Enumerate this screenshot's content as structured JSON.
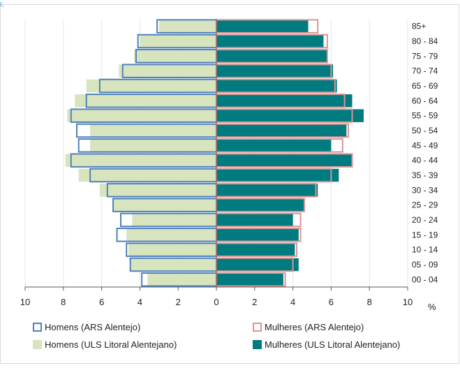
{
  "top_mark": "ι;",
  "chart_data": {
    "type": "bar",
    "orientation": "horizontal",
    "subtype": "population-pyramid",
    "categories": [
      "00 - 04",
      "05 - 09",
      "10 - 14",
      "15 - 19",
      "20 - 24",
      "25 - 29",
      "30 - 34",
      "35 - 39",
      "40 - 44",
      "45 - 49",
      "50 - 54",
      "55 - 59",
      "60 - 64",
      "65 - 69",
      "70 - 74",
      "75 - 79",
      "80 - 84",
      "85+"
    ],
    "xticks": [
      "10",
      "8",
      "6",
      "4",
      "2",
      "0",
      "2",
      "4",
      "6",
      "8",
      "10"
    ],
    "xunit": "%",
    "xlim": [
      -10,
      10
    ],
    "legend_position": "bottom",
    "series": [
      {
        "name": "Homens (ARS Alentejo)",
        "side": "left",
        "style": "outline",
        "color": "#4f81bd",
        "values": [
          3.9,
          4.5,
          4.7,
          5.2,
          5.0,
          5.4,
          5.7,
          6.6,
          7.6,
          7.2,
          7.3,
          7.6,
          6.8,
          6.1,
          4.9,
          4.2,
          4.1,
          3.1
        ]
      },
      {
        "name": "Mulheres (ARS Alentejo)",
        "side": "right",
        "style": "outline",
        "color": "#d99594",
        "values": [
          3.6,
          4.0,
          4.2,
          4.4,
          4.4,
          4.6,
          5.2,
          6.0,
          7.1,
          6.6,
          6.9,
          7.1,
          6.7,
          6.2,
          6.0,
          5.8,
          5.8,
          5.3
        ]
      },
      {
        "name": "Homens (ULS Litoral Alentejano)",
        "side": "left",
        "style": "fill",
        "color": "#d7e4bd",
        "values": [
          3.6,
          4.5,
          4.6,
          4.7,
          4.4,
          5.4,
          6.1,
          7.2,
          7.9,
          6.6,
          6.6,
          7.8,
          7.4,
          6.8,
          5.1,
          4.3,
          4.0,
          3.0
        ]
      },
      {
        "name": "Mulheres (ULS Litoral Alentejano)",
        "side": "right",
        "style": "fill",
        "color": "#007b7f",
        "values": [
          3.5,
          4.3,
          4.1,
          4.3,
          4.0,
          4.6,
          5.3,
          6.4,
          7.1,
          6.0,
          6.8,
          7.7,
          7.1,
          6.3,
          6.1,
          5.8,
          5.6,
          4.8
        ]
      }
    ]
  }
}
